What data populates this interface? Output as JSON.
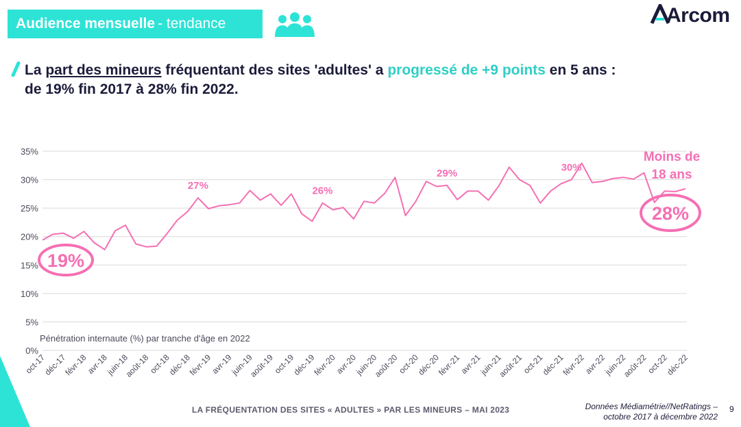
{
  "header": {
    "badge_strong": "Audience mensuelle",
    "badge_light": "- tendance",
    "icon": "people-group-icon",
    "logo": "Arcom"
  },
  "headline": {
    "part1": "La ",
    "underlined": "part des mineurs",
    "part2": " fréquentant des sites 'adultes' a ",
    "highlight": "progressé de +9 points",
    "part3": " en 5 ans :",
    "line2": "de 19% fin 2017 à 28% fin 2022."
  },
  "chart_data": {
    "type": "line",
    "note": "Pénétration internaute (%) par tranche d'âge en 2022",
    "ylim": [
      0,
      35
    ],
    "yticks": [
      "0%",
      "5%",
      "10%",
      "15%",
      "20%",
      "25%",
      "30%",
      "35%"
    ],
    "xtick_labels": [
      "oct-17",
      "déc-17",
      "févr-18",
      "avr-18",
      "juin-18",
      "août-18",
      "oct-18",
      "déc-18",
      "févr-19",
      "avr-19",
      "juin-19",
      "août-19",
      "oct-19",
      "déc-19",
      "févr-20",
      "avr-20",
      "juin-20",
      "août-20",
      "oct-20",
      "déc-20",
      "févr-21",
      "avr-21",
      "juin-21",
      "août-21",
      "oct-21",
      "déc-21",
      "févr-22",
      "avr-22",
      "juin-22",
      "août-22",
      "oct-22",
      "déc-22"
    ],
    "series": [
      {
        "name": "Moins de 18 ans",
        "color": "#f56fb3",
        "values": [
          19.4,
          20.4,
          20.6,
          19.7,
          20.9,
          18.9,
          17.7,
          21.0,
          22.0,
          18.7,
          18.2,
          18.3,
          20.5,
          22.9,
          24.4,
          26.8,
          24.9,
          25.4,
          25.6,
          25.9,
          28.1,
          26.4,
          27.5,
          25.5,
          27.5,
          24.0,
          22.7,
          25.9,
          24.7,
          25.1,
          23.1,
          26.2,
          25.9,
          27.6,
          30.4,
          23.7,
          26.2,
          29.7,
          28.8,
          29.0,
          26.5,
          28.0,
          28.0,
          26.4,
          28.9,
          32.2,
          30.0,
          29.0,
          25.9,
          28.0,
          29.3,
          30.0,
          32.9,
          29.5,
          29.7,
          30.2,
          30.4,
          30.1,
          31.2,
          26.0,
          28.0,
          27.9,
          28.4
        ]
      }
    ],
    "point_labels": [
      {
        "index": 15,
        "text": "27%"
      },
      {
        "index": 27,
        "text": "26%"
      },
      {
        "index": 39,
        "text": "29%"
      },
      {
        "index": 51,
        "text": "30%"
      }
    ],
    "start_callout": "19%",
    "end_callout": "28%",
    "legend_label_line1": "Moins de",
    "legend_label_line2": "18 ans"
  },
  "footer": {
    "title": "LA FRÉQUENTATION DES SITES « ADULTES » PAR LES MINEURS – MAI 2023",
    "source_line1": "Données Médiamétrie//NetRatings –",
    "source_line2": "octobre 2017 à décembre 2022",
    "page": "9"
  },
  "colors": {
    "accent": "#2de3d6",
    "series": "#f56fb3",
    "text": "#1b1b3a"
  }
}
